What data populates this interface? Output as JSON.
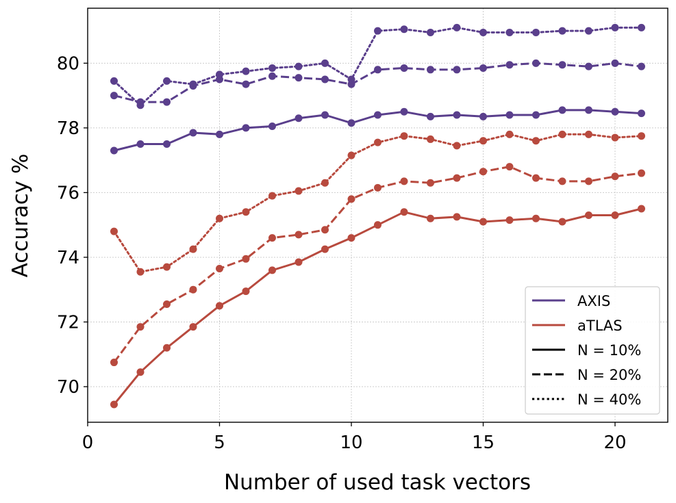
{
  "chart_data": {
    "type": "line",
    "title": "",
    "xlabel": "Number of used task vectors",
    "ylabel": "Accuracy %",
    "xlim": [
      0,
      22
    ],
    "ylim": [
      68.9,
      81.7
    ],
    "xticks": [
      0,
      5,
      10,
      15,
      20
    ],
    "yticks": [
      70,
      72,
      74,
      76,
      78,
      80
    ],
    "grid": true,
    "legend_position": "bottom-right",
    "x": [
      1,
      2,
      3,
      4,
      5,
      6,
      7,
      8,
      9,
      10,
      11,
      12,
      13,
      14,
      15,
      16,
      17,
      18,
      19,
      20,
      21
    ],
    "series": [
      {
        "name": "AXIS N = 10%",
        "method": "AXIS",
        "n": "N = 10%",
        "style": "solid",
        "color": "#5a3f8c",
        "values": [
          77.3,
          77.5,
          77.5,
          77.85,
          77.8,
          78.0,
          78.05,
          78.3,
          78.4,
          78.15,
          78.4,
          78.5,
          78.35,
          78.4,
          78.35,
          78.4,
          78.4,
          78.55,
          78.55,
          78.5,
          78.45
        ]
      },
      {
        "name": "AXIS N = 20%",
        "method": "AXIS",
        "n": "N = 20%",
        "style": "dashed",
        "color": "#5a3f8c",
        "values": [
          79.0,
          78.8,
          78.8,
          79.3,
          79.5,
          79.35,
          79.6,
          79.55,
          79.5,
          79.35,
          79.8,
          79.85,
          79.8,
          79.8,
          79.85,
          79.95,
          80.0,
          79.95,
          79.9,
          80.0,
          79.9
        ]
      },
      {
        "name": "AXIS N = 40%",
        "method": "AXIS",
        "n": "N = 40%",
        "style": "dotted",
        "color": "#5a3f8c",
        "values": [
          79.45,
          78.7,
          79.45,
          79.35,
          79.65,
          79.75,
          79.85,
          79.9,
          80.0,
          79.5,
          81.0,
          81.05,
          80.95,
          81.1,
          80.95,
          80.95,
          80.95,
          81.0,
          81.0,
          81.1,
          81.1
        ]
      },
      {
        "name": "aTLAS N = 10%",
        "method": "aTLAS",
        "n": "N = 10%",
        "style": "solid",
        "color": "#b84a3e",
        "values": [
          69.45,
          70.45,
          71.2,
          71.85,
          72.5,
          72.95,
          73.6,
          73.85,
          74.25,
          74.6,
          75.0,
          75.4,
          75.2,
          75.25,
          75.1,
          75.15,
          75.2,
          75.1,
          75.3,
          75.3,
          75.5
        ]
      },
      {
        "name": "aTLAS N = 20%",
        "method": "aTLAS",
        "n": "N = 20%",
        "style": "dashed",
        "color": "#b84a3e",
        "values": [
          70.75,
          71.85,
          72.55,
          73.0,
          73.65,
          73.95,
          74.6,
          74.7,
          74.85,
          75.8,
          76.15,
          76.35,
          76.3,
          76.45,
          76.65,
          76.8,
          76.45,
          76.35,
          76.35,
          76.5,
          76.6
        ]
      },
      {
        "name": "aTLAS N = 40%",
        "method": "aTLAS",
        "n": "N = 40%",
        "style": "dotted",
        "color": "#b84a3e",
        "values": [
          74.8,
          73.55,
          73.7,
          74.25,
          75.2,
          75.4,
          75.9,
          76.05,
          76.3,
          77.15,
          77.55,
          77.75,
          77.65,
          77.45,
          77.6,
          77.8,
          77.6,
          77.8,
          77.8,
          77.7,
          77.75
        ]
      }
    ],
    "legend": [
      {
        "label": "AXIS",
        "color": "#5a3f8c",
        "style": "solid"
      },
      {
        "label": "aTLAS",
        "color": "#b84a3e",
        "style": "solid"
      },
      {
        "label": "N = 10%",
        "color": "#000000",
        "style": "solid"
      },
      {
        "label": "N = 20%",
        "color": "#000000",
        "style": "dashed"
      },
      {
        "label": "N = 40%",
        "color": "#000000",
        "style": "dotted"
      }
    ]
  }
}
